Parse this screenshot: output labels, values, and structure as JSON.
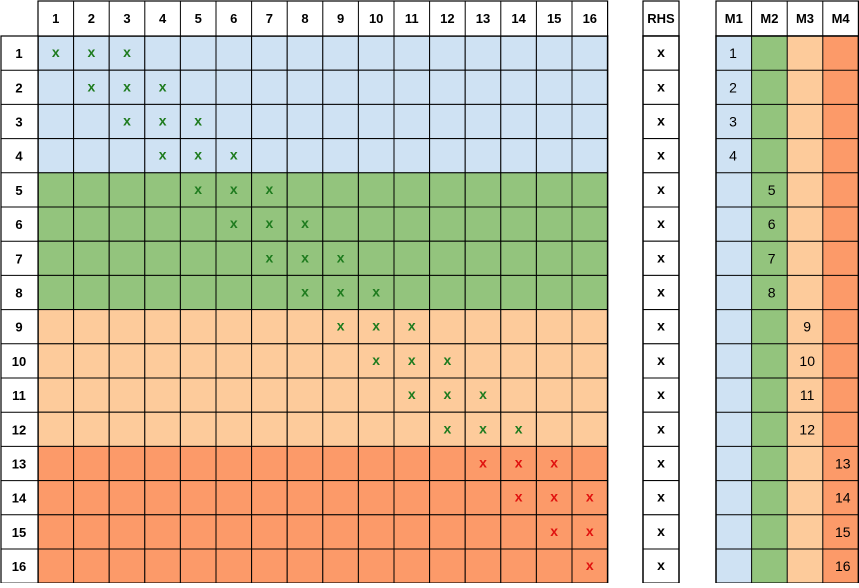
{
  "column_headers": [
    "1",
    "2",
    "3",
    "4",
    "5",
    "6",
    "7",
    "8",
    "9",
    "10",
    "11",
    "12",
    "13",
    "14",
    "15",
    "16"
  ],
  "row_headers": [
    "1",
    "2",
    "3",
    "4",
    "5",
    "6",
    "7",
    "8",
    "9",
    "10",
    "11",
    "12",
    "13",
    "14",
    "15",
    "16"
  ],
  "rhs": {
    "header": "RHS",
    "marks": [
      "x",
      "x",
      "x",
      "x",
      "x",
      "x",
      "x",
      "x",
      "x",
      "x",
      "x",
      "x",
      "x",
      "x",
      "x",
      "x"
    ]
  },
  "m_headers": [
    "M1",
    "M2",
    "M3",
    "M4"
  ],
  "m_values": [
    "1",
    "2",
    "3",
    "4",
    "5",
    "6",
    "7",
    "8",
    "9",
    "10",
    "11",
    "12",
    "13",
    "14",
    "15",
    "16"
  ],
  "mark_symbol": "x",
  "row_group": [
    0,
    0,
    0,
    0,
    1,
    1,
    1,
    1,
    2,
    2,
    2,
    2,
    3,
    3,
    3,
    3
  ],
  "marks": [
    [
      1,
      2,
      3
    ],
    [
      2,
      3,
      4
    ],
    [
      3,
      4,
      5
    ],
    [
      4,
      5,
      6
    ],
    [
      5,
      6,
      7
    ],
    [
      6,
      7,
      8
    ],
    [
      7,
      8,
      9
    ],
    [
      8,
      9,
      10
    ],
    [
      9,
      10,
      11
    ],
    [
      10,
      11,
      12
    ],
    [
      11,
      12,
      13
    ],
    [
      12,
      13,
      14
    ],
    [
      13,
      14,
      15
    ],
    [
      14,
      15,
      16
    ],
    [
      15,
      16
    ],
    [
      16
    ]
  ],
  "colors": {
    "group_fill": [
      "#cfe2f3",
      "#93c47d",
      "#fdcb9b",
      "#fc9a69"
    ],
    "mark_color": [
      "#1e7b1e",
      "#1e7b1e",
      "#1e7b1e",
      "#e0120f"
    ],
    "grid_line": "#000000"
  }
}
